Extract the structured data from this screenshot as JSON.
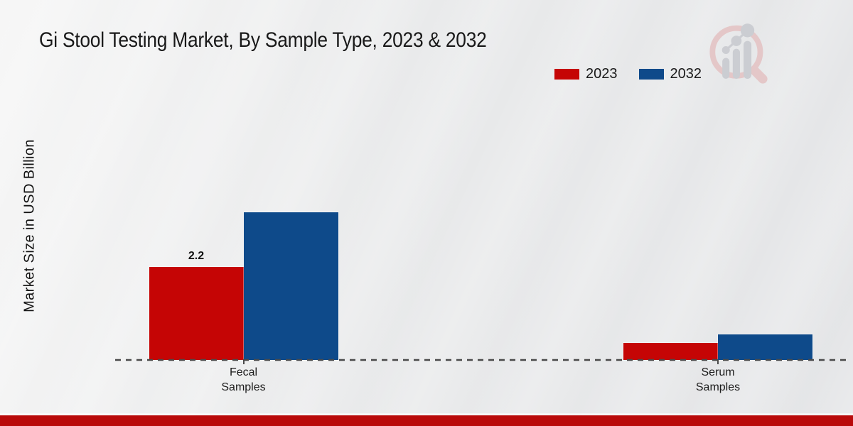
{
  "header": {
    "title": "Gi Stool Testing Market, By Sample Type, 2023 & 2032"
  },
  "legend": {
    "items": [
      {
        "label": "2023",
        "color": "#c50505"
      },
      {
        "label": "2032",
        "color": "#0e4a8a"
      }
    ]
  },
  "chart_data": {
    "type": "bar",
    "title": "Gi Stool Testing Market, By Sample Type, 2023 & 2032",
    "ylabel": "Market Size in USD Billion",
    "xlabel": "",
    "categories": [
      "Fecal\nSamples",
      "Serum\nSamples"
    ],
    "series": [
      {
        "name": "2023",
        "color": "#c50505",
        "values": [
          2.2,
          0.4
        ],
        "value_labels": [
          "2.2",
          ""
        ]
      },
      {
        "name": "2032",
        "color": "#0e4a8a",
        "values": [
          3.5,
          0.6
        ],
        "value_labels": [
          "",
          ""
        ]
      }
    ],
    "ylim": [
      0,
      3.9
    ],
    "grid": false,
    "legend_position": "top-right",
    "baseline_style": "dashed"
  },
  "colors": {
    "accent_red": "#c50505",
    "accent_blue": "#0e4a8a",
    "footer_red": "#b90a0a",
    "baseline_gray": "#4a4a4a",
    "background": "#e8e9ea"
  },
  "watermark": {
    "icon": "magnifier-bar-chart-logo"
  }
}
